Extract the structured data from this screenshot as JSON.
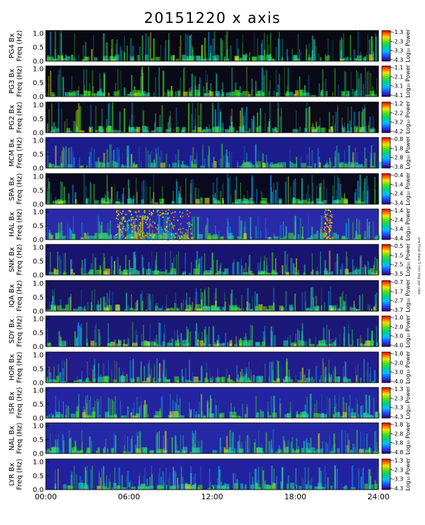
{
  "title": "20151220 x axis",
  "footnote": "pre-final data 5 min bkg per rate",
  "chart_data": {
    "type": "heatmap",
    "title": "20151220 x axis",
    "x_axis": {
      "tick_labels": [
        "00:00",
        "06:00",
        "12:00",
        "18:00",
        "24:00"
      ],
      "range_hours": [
        0,
        24
      ]
    },
    "y_axis": {
      "ylim": [
        0,
        1.1
      ],
      "tick_labels": [
        "0.0",
        "0.5",
        "1.0"
      ]
    },
    "colorbar_label": "Log₁₀ Power",
    "panels": [
      {
        "station": "PG4",
        "ylabel": "PG4 Bx\nFreq (Hz)",
        "colorbar_ticks": [
          "-1.3",
          "-2.3",
          "-3.3",
          "-4.3"
        ],
        "bg": "#090914"
      },
      {
        "station": "PG3",
        "ylabel": "PG3 Bx\nFreq (Hz)",
        "colorbar_ticks": [
          "-1.1",
          "-2.1",
          "-3.1",
          "-4.1"
        ],
        "bg": "#0a0918"
      },
      {
        "station": "PG2",
        "ylabel": "PG2 Bx\nFreq (Hz)",
        "colorbar_ticks": [
          "-1.2",
          "-2.2",
          "-3.2",
          "-4.2"
        ],
        "bg": "#0d0a1a"
      },
      {
        "station": "MCM",
        "ylabel": "MCM Bx\nFreq (Hz)",
        "colorbar_ticks": [
          "-0.8",
          "-1.8",
          "-2.8",
          "-3.8"
        ],
        "bg": "#1a1888"
      },
      {
        "station": "SPA",
        "ylabel": "SPA Bx\nFreq (Hz)",
        "colorbar_ticks": [
          "-0.4",
          "-1.4",
          "-2.4",
          "-3.4"
        ],
        "bg": "#0a0920"
      },
      {
        "station": "HAL",
        "ylabel": "HAL Bx\nFreq (Hz)",
        "colorbar_ticks": [
          "-1.4",
          "-2.4",
          "-3.4",
          "-4.4"
        ],
        "bg": "#2a2aa8"
      },
      {
        "station": "SNK",
        "ylabel": "SNK Bx\nFreq (Hz)",
        "colorbar_ticks": [
          "-0.5",
          "-1.5",
          "-2.5",
          "-3.5"
        ],
        "bg": "#1a1470"
      },
      {
        "station": "IQA",
        "ylabel": "IQA Bx\nFreq (Hz)",
        "colorbar_ticks": [
          "-0.7",
          "-1.7",
          "-2.7",
          "-3.7"
        ],
        "bg": "#1a1464"
      },
      {
        "station": "SDY",
        "ylabel": "SDY Bx\nFreq (Hz)",
        "colorbar_ticks": [
          "-1.0",
          "-2.0",
          "-3.0",
          "-4.0"
        ],
        "bg": "#1c1878"
      },
      {
        "station": "HOR",
        "ylabel": "HOR Bx\nFreq (Hz)",
        "colorbar_ticks": [
          "-1.0",
          "-2.0",
          "-3.0",
          "-4.0"
        ],
        "bg": "#221c8c"
      },
      {
        "station": "ISR",
        "ylabel": "ISR Bx\nFreq (Hz)",
        "colorbar_ticks": [
          "-1.3",
          "-2.3",
          "-3.3",
          "-4.3"
        ],
        "bg": "#2424a0"
      },
      {
        "station": "NAL",
        "ylabel": "NAL Bx\nFreq (Hz)",
        "colorbar_ticks": [
          "-1.8",
          "-2.8",
          "-3.8",
          "-4.8"
        ],
        "bg": "#2428a4"
      },
      {
        "station": "LYR",
        "ylabel": "LYR Bx\nFreq (Hz)",
        "colorbar_ticks": [
          "-1.3",
          "-2.3",
          "-3.3",
          "-4.3"
        ],
        "bg": "#2222a0"
      }
    ]
  }
}
